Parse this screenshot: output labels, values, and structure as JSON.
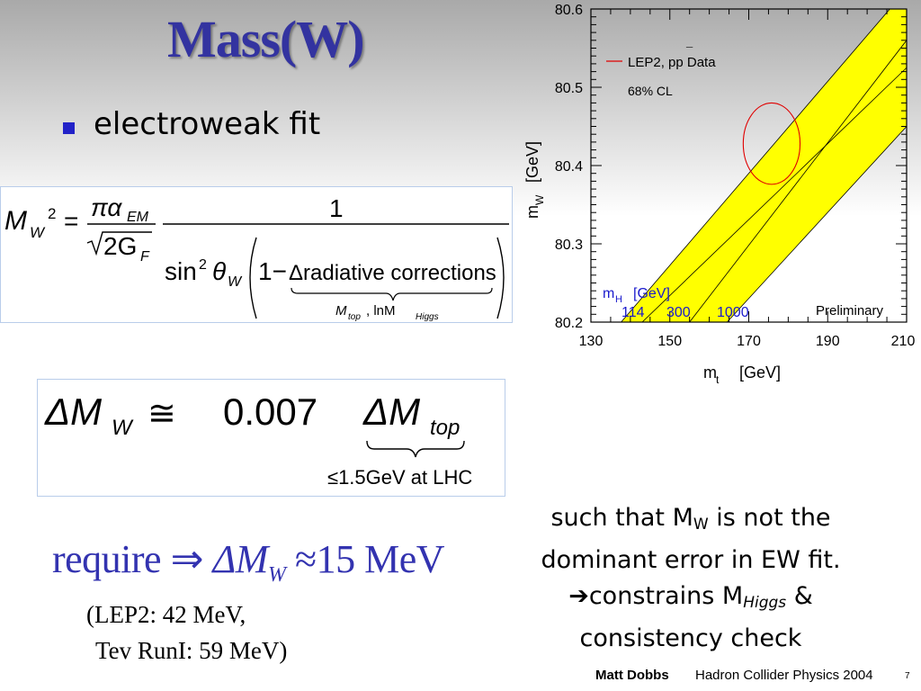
{
  "slide": {
    "title": "Mass(W)",
    "bullet": "electroweak fit",
    "eq1": {
      "lhs_M": "M",
      "lhs_sub": "W",
      "lhs_sup": "2",
      "num_pi": "πα",
      "num_sub": "EM",
      "den_sqrt": "2G",
      "den_sub": "F",
      "one": "1",
      "sin": "sin",
      "sin_sup": "2",
      "theta": "θ",
      "theta_sub": "W",
      "bracket_one": "1−",
      "delta_text": "Δradiative corrections",
      "under_text_1": "M",
      "under_sub_1": "top",
      "under_text_2": ",   lnM",
      "under_sub_2": "Higgs"
    },
    "eq2": {
      "lhs": "ΔM",
      "lhs_sub": "W",
      "approx": "≅",
      "coef": "0.007",
      "rhs": "ΔM",
      "rhs_sub": "top",
      "under": "≤1.5GeV at LHC"
    },
    "statement": {
      "line1a": "such that M",
      "line1sub": "W",
      "line1b": " is not the",
      "line2": "dominant error in EW fit.",
      "line3a": "➔constrains M",
      "line3sub": "Higgs",
      "line3b": " &",
      "line4": "consistency check"
    },
    "require": {
      "word": "require",
      "arrow": "⇒",
      "dm": "ΔM",
      "dm_sub": "W",
      "approx": "≈",
      "value": "15 MeV"
    },
    "lep2_line1": "(LEP2: 42 MeV,",
    "lep2_line2": "Tev RunI: 59 MeV)",
    "footer": {
      "author": "Matt Dobbs",
      "conference": "Hadron Collider Physics 2004",
      "page": "7"
    }
  },
  "chart_data": {
    "type": "area",
    "xlabel": "m",
    "xlabel_sub": "t",
    "xlabel_unit": "[GeV]",
    "ylabel": "m",
    "ylabel_sub": "W",
    "ylabel_unit": "[GeV]",
    "xlim": [
      130,
      210
    ],
    "ylim": [
      80.2,
      80.6
    ],
    "x_ticks": [
      "130",
      "150",
      "170",
      "190",
      "210"
    ],
    "y_ticks": [
      "80.2",
      "80.3",
      "80.4",
      "80.5",
      "80.6"
    ],
    "legend": {
      "entry": "LEP2, pp",
      "entry_bar": "¯",
      "entry_tail": " Data",
      "cl": "68% CL"
    },
    "preliminary": "Preliminary",
    "mh_label": "m",
    "mh_sub": "H",
    "mh_unit": "[GeV]",
    "mh_values": [
      "114",
      "300",
      "1000"
    ],
    "band_color": "#ffff00",
    "ellipse_color": "#e00000",
    "mh_color": "#1a1acc",
    "band": {
      "lower_edge": [
        [
          143,
          80.2
        ],
        [
          210,
          80.525
        ]
      ],
      "upper_edge": [
        [
          130,
          80.155
        ],
        [
          210,
          80.625
        ]
      ],
      "right_edge": [
        [
          164.5,
          80.2
        ],
        [
          210,
          80.45
        ]
      ],
      "mid_line": [
        [
          155,
          80.2
        ],
        [
          210,
          80.56
        ]
      ]
    },
    "ellipse": {
      "cx": 175.8,
      "cy": 80.428,
      "rx": 7.2,
      "ry": 0.052
    }
  }
}
